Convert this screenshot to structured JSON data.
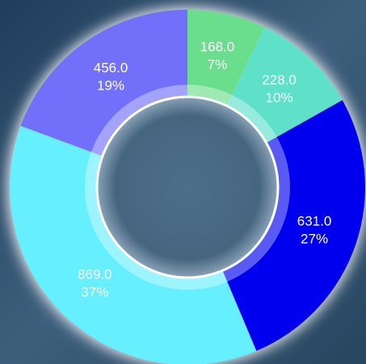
{
  "chart_data": {
    "type": "donut",
    "values": [
      168,
      228,
      631,
      869,
      456
    ],
    "value_labels": [
      "168.0",
      "228.0",
      "631.0",
      "869.0",
      "456.0"
    ],
    "percent_labels": [
      "7%",
      "10%",
      "27%",
      "37%",
      "19%"
    ],
    "colors": [
      "#6ade8c",
      "#5fe0c9",
      "#0000ee",
      "#66efff",
      "#7270fb"
    ]
  }
}
